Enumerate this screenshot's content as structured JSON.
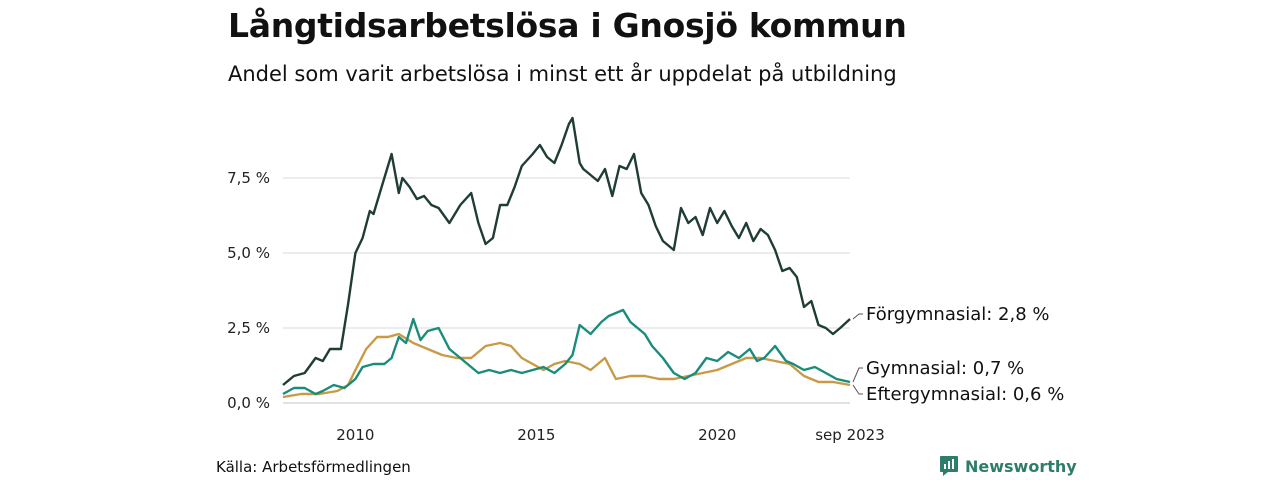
{
  "title": "Långtidsarbetslösa i Gnosjö kommun",
  "subtitle": "Andel som varit arbetslösa i minst ett år uppdelat på utbildning",
  "source": "Källa: Arbetsförmedlingen",
  "brand": "Newsworthy",
  "colors": {
    "forgymnasial": "#1f3d36",
    "gymnasial": "#1a8c7a",
    "eftergymnasial": "#c99a45",
    "brand": "#2e7d6b"
  },
  "chart_data": {
    "type": "line",
    "title": "Långtidsarbetslösa i Gnosjö kommun",
    "x_range": [
      2008.0,
      2023.67
    ],
    "ylim": [
      0,
      9.6
    ],
    "y_ticks": [
      0,
      2.5,
      5.0,
      7.5
    ],
    "y_tick_labels": [
      "0,0 %",
      "2,5 %",
      "5,0 %",
      "7,5 %"
    ],
    "x_ticks": [
      2010,
      2015,
      2020,
      2023.67
    ],
    "x_tick_labels": [
      "2010",
      "2015",
      "2020",
      "sep 2023"
    ],
    "grid": true,
    "series": [
      {
        "name": "Förgymnasial",
        "label": "Förgymnasial: 2,8 %",
        "x": [
          2008.0,
          2008.3,
          2008.6,
          2008.9,
          2009.1,
          2009.3,
          2009.6,
          2009.8,
          2010.0,
          2010.2,
          2010.4,
          2010.5,
          2010.7,
          2011.0,
          2011.2,
          2011.3,
          2011.5,
          2011.7,
          2011.9,
          2012.1,
          2012.3,
          2012.6,
          2012.9,
          2013.2,
          2013.4,
          2013.6,
          2013.8,
          2014.0,
          2014.2,
          2014.4,
          2014.6,
          2014.9,
          2015.1,
          2015.3,
          2015.5,
          2015.7,
          2015.9,
          2016.0,
          2016.2,
          2016.3,
          2016.5,
          2016.7,
          2016.9,
          2017.1,
          2017.3,
          2017.5,
          2017.7,
          2017.9,
          2018.1,
          2018.3,
          2018.5,
          2018.8,
          2019.0,
          2019.2,
          2019.4,
          2019.6,
          2019.8,
          2020.0,
          2020.2,
          2020.4,
          2020.6,
          2020.8,
          2021.0,
          2021.2,
          2021.4,
          2021.6,
          2021.8,
          2022.0,
          2022.2,
          2022.4,
          2022.6,
          2022.8,
          2023.0,
          2023.2,
          2023.4,
          2023.67
        ],
        "values": [
          0.6,
          0.9,
          1.0,
          1.5,
          1.4,
          1.8,
          1.8,
          3.3,
          5.0,
          5.5,
          6.4,
          6.3,
          7.1,
          8.3,
          7.0,
          7.5,
          7.2,
          6.8,
          6.9,
          6.6,
          6.5,
          6.0,
          6.6,
          7.0,
          6.0,
          5.3,
          5.5,
          6.6,
          6.6,
          7.2,
          7.9,
          8.3,
          8.6,
          8.2,
          8.0,
          8.6,
          9.3,
          9.5,
          8.0,
          7.8,
          7.6,
          7.4,
          7.8,
          6.9,
          7.9,
          7.8,
          8.3,
          7.0,
          6.6,
          5.9,
          5.4,
          5.1,
          6.5,
          6.0,
          6.2,
          5.6,
          6.5,
          6.0,
          6.4,
          5.9,
          5.5,
          6.0,
          5.4,
          5.8,
          5.6,
          5.1,
          4.4,
          4.5,
          4.2,
          3.2,
          3.4,
          2.6,
          2.5,
          2.3,
          2.5,
          2.8
        ]
      },
      {
        "name": "Gymnasial",
        "label": "Gymnasial: 0,7 %",
        "x": [
          2008.0,
          2008.3,
          2008.6,
          2008.9,
          2009.1,
          2009.4,
          2009.7,
          2010.0,
          2010.2,
          2010.5,
          2010.8,
          2011.0,
          2011.2,
          2011.4,
          2011.6,
          2011.8,
          2012.0,
          2012.3,
          2012.6,
          2012.9,
          2013.1,
          2013.4,
          2013.7,
          2014.0,
          2014.3,
          2014.6,
          2014.9,
          2015.2,
          2015.5,
          2015.8,
          2016.0,
          2016.2,
          2016.5,
          2016.8,
          2017.0,
          2017.2,
          2017.4,
          2017.6,
          2017.8,
          2018.0,
          2018.2,
          2018.5,
          2018.8,
          2019.1,
          2019.4,
          2019.7,
          2020.0,
          2020.3,
          2020.6,
          2020.9,
          2021.1,
          2021.3,
          2021.6,
          2021.9,
          2022.1,
          2022.4,
          2022.7,
          2023.0,
          2023.3,
          2023.67
        ],
        "values": [
          0.3,
          0.5,
          0.5,
          0.3,
          0.4,
          0.6,
          0.5,
          0.8,
          1.2,
          1.3,
          1.3,
          1.5,
          2.2,
          2.0,
          2.8,
          2.1,
          2.4,
          2.5,
          1.8,
          1.5,
          1.3,
          1.0,
          1.1,
          1.0,
          1.1,
          1.0,
          1.1,
          1.2,
          1.0,
          1.3,
          1.6,
          2.6,
          2.3,
          2.7,
          2.9,
          3.0,
          3.1,
          2.7,
          2.5,
          2.3,
          1.9,
          1.5,
          1.0,
          0.8,
          1.0,
          1.5,
          1.4,
          1.7,
          1.5,
          1.8,
          1.4,
          1.5,
          1.9,
          1.4,
          1.3,
          1.1,
          1.2,
          1.0,
          0.8,
          0.7
        ]
      },
      {
        "name": "Eftergymnasial",
        "label": "Eftergymnasial: 0,6 %",
        "x": [
          2008.0,
          2008.5,
          2009.0,
          2009.5,
          2009.8,
          2010.0,
          2010.3,
          2010.6,
          2010.9,
          2011.2,
          2011.6,
          2012.0,
          2012.4,
          2012.8,
          2013.2,
          2013.6,
          2014.0,
          2014.3,
          2014.6,
          2014.9,
          2015.2,
          2015.5,
          2015.8,
          2016.2,
          2016.5,
          2016.9,
          2017.2,
          2017.6,
          2018.0,
          2018.4,
          2018.8,
          2019.2,
          2019.6,
          2020.0,
          2020.4,
          2020.8,
          2021.2,
          2021.6,
          2022.0,
          2022.4,
          2022.8,
          2023.2,
          2023.67
        ],
        "values": [
          0.2,
          0.3,
          0.3,
          0.4,
          0.6,
          1.1,
          1.8,
          2.2,
          2.2,
          2.3,
          2.0,
          1.8,
          1.6,
          1.5,
          1.5,
          1.9,
          2.0,
          1.9,
          1.5,
          1.3,
          1.1,
          1.3,
          1.4,
          1.3,
          1.1,
          1.5,
          0.8,
          0.9,
          0.9,
          0.8,
          0.8,
          0.9,
          1.0,
          1.1,
          1.3,
          1.5,
          1.5,
          1.4,
          1.3,
          0.9,
          0.7,
          0.7,
          0.6
        ]
      }
    ]
  }
}
